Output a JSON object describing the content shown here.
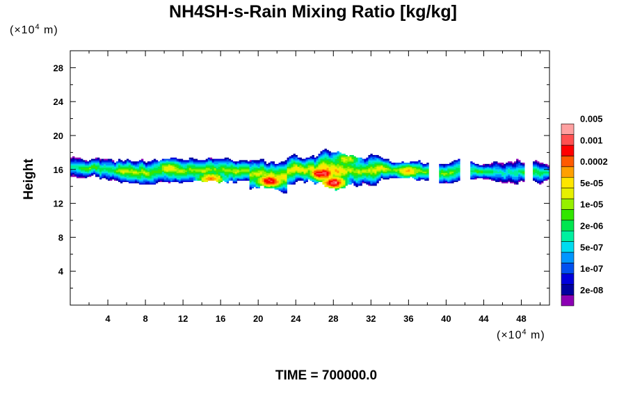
{
  "chart_data": {
    "type": "heatmap",
    "title": "NH4SH-s-Rain Mixing Ratio [kg/kg]",
    "ylabel": "Height",
    "xunit": {
      "pre": "(×10",
      "exp": "4",
      "post": " m)"
    },
    "yunit": {
      "pre": "(×10",
      "exp": "4",
      "post": " m)"
    },
    "xlim": [
      0,
      51
    ],
    "ylim": [
      0,
      30
    ],
    "xticks": [
      4,
      8,
      12,
      16,
      20,
      24,
      28,
      32,
      36,
      40,
      44,
      48
    ],
    "yticks": [
      4,
      8,
      12,
      16,
      20,
      24,
      28
    ],
    "colorbar": {
      "colors": [
        "#8c00b4",
        "#0000a0",
        "#0000dc",
        "#0050f0",
        "#0096ff",
        "#00dcf0",
        "#00f0a0",
        "#00e650",
        "#32e600",
        "#96f000",
        "#e6f000",
        "#ffe600",
        "#ffa000",
        "#ff5a00",
        "#ff0000",
        "#ff5050",
        "#ffa0a0"
      ],
      "labels": [
        "2e-08",
        "1e-07",
        "5e-07",
        "2e-06",
        "1e-05",
        "5e-05",
        "0.0002",
        "0.001",
        "0.005"
      ]
    },
    "field": {
      "description_levels": "color index 0-16",
      "cloud_band": {
        "x_range": [
          0,
          51
        ],
        "y_center": 15.8,
        "y_halfwidth": 1.5
      },
      "cores": [
        {
          "x": 28.0,
          "y": 14.4,
          "level": 14
        },
        {
          "x": 26.8,
          "y": 15.5,
          "level": 13
        },
        {
          "x": 21.2,
          "y": 14.6,
          "level": 13
        },
        {
          "x": 15.0,
          "y": 14.8,
          "level": 12
        },
        {
          "x": 29.5,
          "y": 17.3,
          "level": 9
        },
        {
          "x": 10.5,
          "y": 16.2,
          "level": 8
        },
        {
          "x": 36.0,
          "y": 15.8,
          "level": 9
        }
      ]
    }
  },
  "footer": {
    "time_text": "TIME = 700000.0"
  }
}
